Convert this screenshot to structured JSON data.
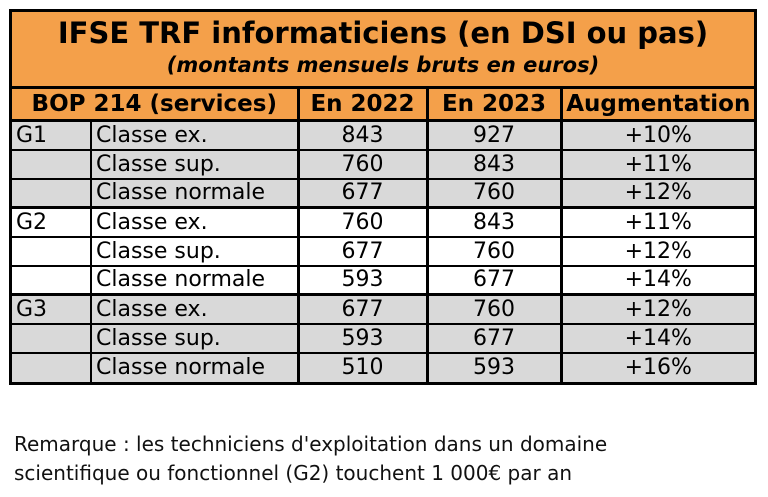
{
  "title": "IFSE TRF informaticiens (en DSI ou pas)",
  "subtitle": "(montants mensuels bruts en euros)",
  "table": {
    "headers": [
      "BOP 214 (services)",
      "En 2022",
      "En 2023",
      "Augmentation"
    ],
    "rows": [
      {
        "group": "G1",
        "class": "Classe ex.",
        "y2022": "843",
        "y2023": "927",
        "increase": "+10%"
      },
      {
        "group": "",
        "class": "Classe sup.",
        "y2022": "760",
        "y2023": "843",
        "increase": "+11%"
      },
      {
        "group": "",
        "class": "Classe normale",
        "y2022": "677",
        "y2023": "760",
        "increase": "+12%"
      },
      {
        "group": "G2",
        "class": "Classe ex.",
        "y2022": "760",
        "y2023": "843",
        "increase": "+11%"
      },
      {
        "group": "",
        "class": "Classe sup.",
        "y2022": "677",
        "y2023": "760",
        "increase": "+12%"
      },
      {
        "group": "",
        "class": "Classe normale",
        "y2022": "593",
        "y2023": "677",
        "increase": "+14%"
      },
      {
        "group": "G3",
        "class": "Classe ex.",
        "y2022": "677",
        "y2023": "760",
        "increase": "+12%"
      },
      {
        "group": "",
        "class": "Classe sup.",
        "y2022": "593",
        "y2023": "677",
        "increase": "+14%"
      },
      {
        "group": "",
        "class": "Classe normale",
        "y2022": "510",
        "y2023": "593",
        "increase": "+16%"
      }
    ]
  },
  "remark": {
    "line1": "Remarque : les techniciens d'exploitation dans un domaine",
    "line2": "scientifique ou fonctionnel (G2) touchent 1 000€ par an"
  },
  "colors": {
    "header_orange": "#f4a04a",
    "row_gray": "#d9d9d9",
    "row_white": "#ffffff"
  }
}
